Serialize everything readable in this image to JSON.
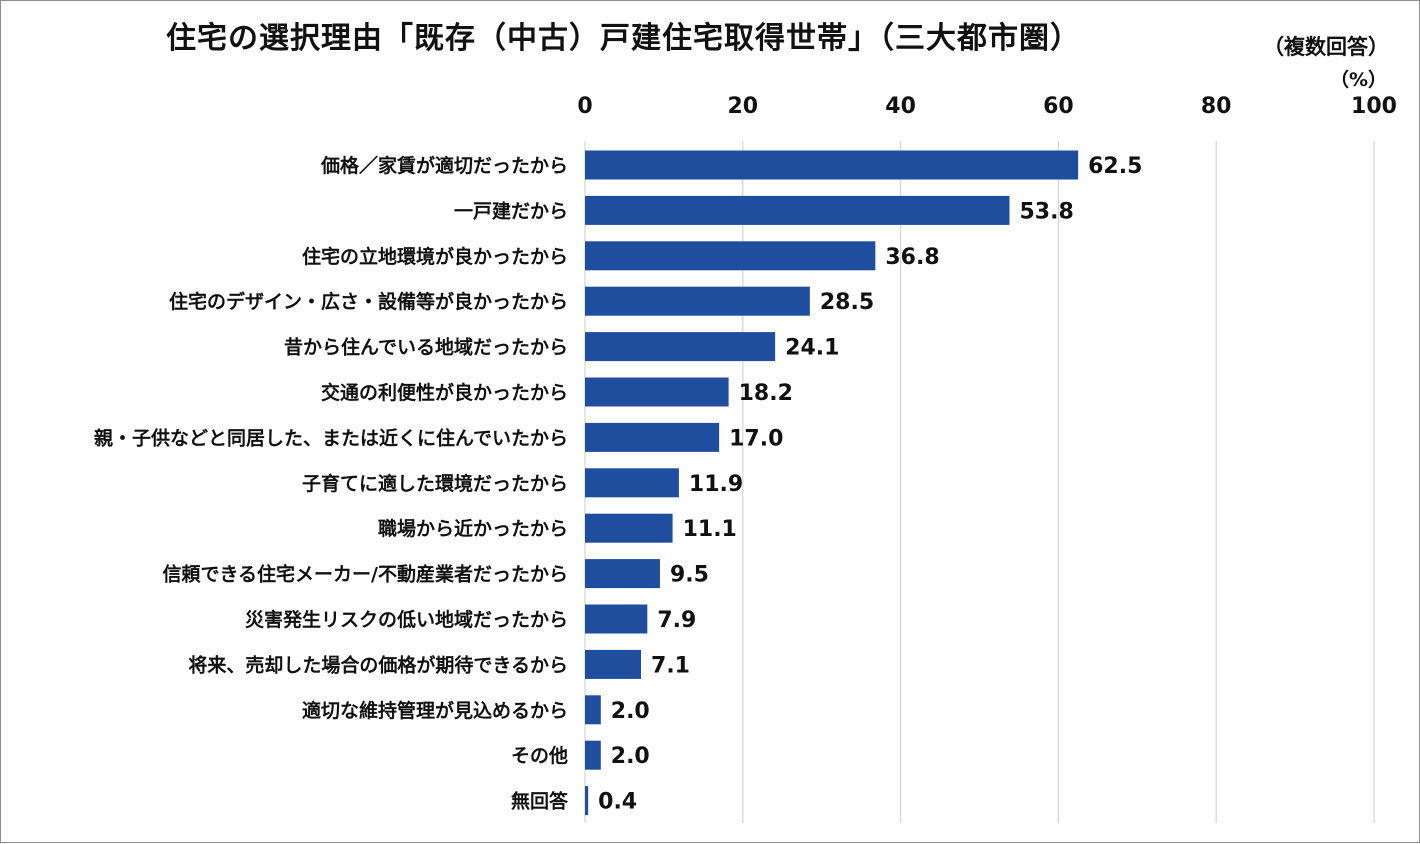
{
  "chart_data": {
    "type": "bar",
    "orientation": "horizontal",
    "title": "住宅の選択理由「既存（中古）戸建住宅取得世帯」（三大都市圏）",
    "note": "（複数回答）",
    "unit": "（%）",
    "xlim": [
      0,
      100
    ],
    "xticks": [
      0,
      20,
      40,
      60,
      80,
      100
    ],
    "grid": true,
    "bar_color": "#1f4e9e",
    "categories": [
      "価格／家賃が適切だったから",
      "一戸建だから",
      "住宅の立地環境が良かったから",
      "住宅のデザイン・広さ・設備等が良かったから",
      "昔から住んでいる地域だったから",
      "交通の利便性が良かったから",
      "親・子供などと同居した、または近くに住んでいたから",
      "子育てに適した環境だったから",
      "職場から近かったから",
      "信頼できる住宅メーカー/不動産業者だったから",
      "災害発生リスクの低い地域だったから",
      "将来、売却した場合の価格が期待できるから",
      "適切な維持管理が見込めるから",
      "その他",
      "無回答"
    ],
    "values": [
      62.5,
      53.8,
      36.8,
      28.5,
      24.1,
      18.2,
      17.0,
      11.9,
      11.1,
      9.5,
      7.9,
      7.1,
      2.0,
      2.0,
      0.4
    ],
    "value_labels": [
      "62.5",
      "53.8",
      "36.8",
      "28.5",
      "24.1",
      "18.2",
      "17.0",
      "11.9",
      "11.1",
      "9.5",
      "7.9",
      "7.1",
      "2.0",
      "2.0",
      "0.4"
    ]
  }
}
